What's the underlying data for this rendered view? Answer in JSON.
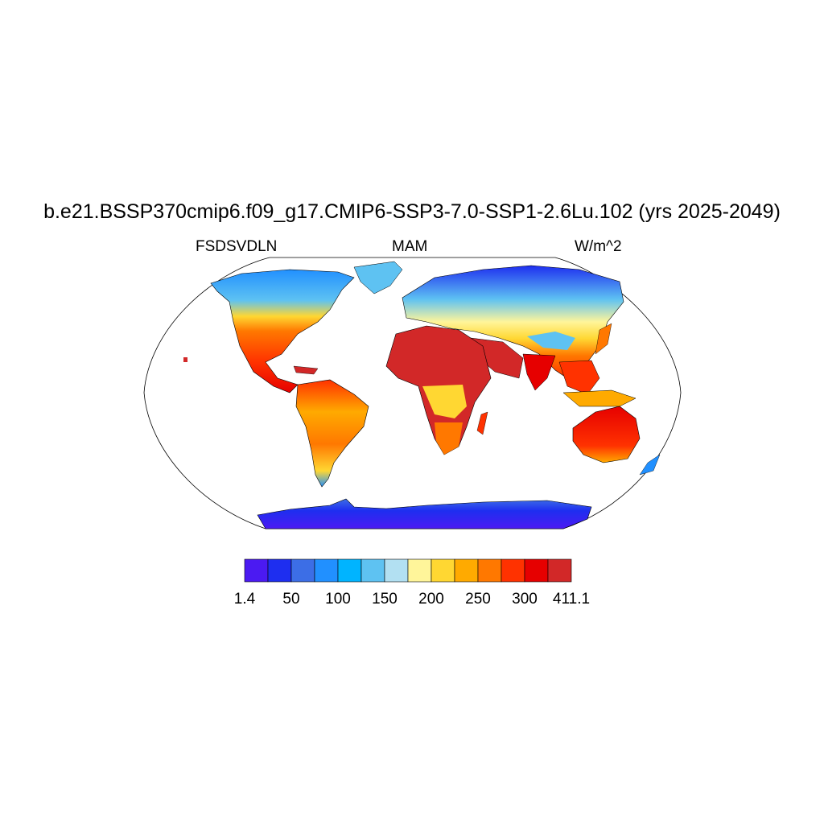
{
  "title": "b.e21.BSSP370cmip6.f09_g17.CMIP6-SSP3-7.0-SSP1-2.6Lu.102 (yrs 2025-2049)",
  "left_string": "FSDSVDLN",
  "center_string": "MAM",
  "right_string": "W/m^2",
  "map": {
    "projection": "Robinson",
    "variable": "FSDSVDLN",
    "season": "MAM",
    "units": "W/m^2",
    "ocean_masked": true,
    "coastlines": true
  },
  "colorbar": {
    "orientation": "horizontal",
    "colors": [
      "#4b1af2",
      "#1e2ef0",
      "#3c6ee6",
      "#2190ff",
      "#00b4ff",
      "#5ec2f2",
      "#b2e0f2",
      "#fff59a",
      "#ffd732",
      "#ffaa00",
      "#ff7800",
      "#ff3200",
      "#e60000",
      "#d22828"
    ],
    "tick_labels": [
      "1.4",
      "50",
      "100",
      "150",
      "200",
      "250",
      "300",
      "411.1"
    ],
    "tick_boundaries": [
      0,
      2,
      4,
      6,
      8,
      10,
      12,
      14
    ]
  }
}
